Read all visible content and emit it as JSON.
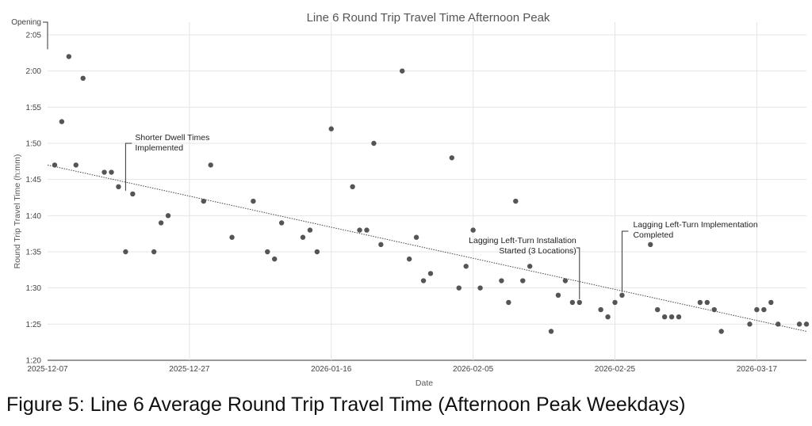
{
  "caption": "Figure 5: Line 6 Average Round Trip Travel Time (Afternoon Peak Weekdays)",
  "chart_data": {
    "type": "scatter",
    "title": "Line 6 Round Trip Travel Time Afternoon Peak",
    "xlabel": "Date",
    "ylabel": "Round Trip Travel Time (h:mm)",
    "x_ticks": [
      "2025-12-07",
      "2025-12-27",
      "2026-01-16",
      "2026-02-05",
      "2026-02-25",
      "2026-03-17"
    ],
    "y_ticks": [
      "1:20",
      "1:25",
      "1:30",
      "1:35",
      "1:40",
      "1:45",
      "1:50",
      "1:55",
      "2:00",
      "2:05"
    ],
    "xlim": [
      "2025-12-07",
      "2026-03-24"
    ],
    "ylim": [
      "1:20",
      "2:08"
    ],
    "grid": true,
    "opening_label": "Opening",
    "trendline": {
      "style": "dotted",
      "from": {
        "x": "2025-12-07",
        "y": "1:47"
      },
      "to": {
        "x": "2026-03-24",
        "y": "1:24"
      }
    },
    "annotations": [
      {
        "lines": [
          "Shorter Dwell Times",
          "Implemented"
        ],
        "x": "2025-12-18",
        "y": "1:43"
      },
      {
        "lines": [
          "Lagging Left-Turn Installation",
          "Started (3 Locations)"
        ],
        "x": "2026-02-20",
        "y": "1:28"
      },
      {
        "lines": [
          "Lagging Left-Turn Implementation",
          "Completed"
        ],
        "x": "2026-02-26",
        "y": "1:29"
      }
    ],
    "series": [
      {
        "points": [
          {
            "x": "2025-12-08",
            "y": "1:47"
          },
          {
            "x": "2025-12-09",
            "y": "1:53"
          },
          {
            "x": "2025-12-10",
            "y": "2:02"
          },
          {
            "x": "2025-12-11",
            "y": "1:47"
          },
          {
            "x": "2025-12-12",
            "y": "1:59"
          },
          {
            "x": "2025-12-15",
            "y": "1:46"
          },
          {
            "x": "2025-12-16",
            "y": "1:46"
          },
          {
            "x": "2025-12-17",
            "y": "1:44"
          },
          {
            "x": "2025-12-18",
            "y": "1:35"
          },
          {
            "x": "2025-12-19",
            "y": "1:43"
          },
          {
            "x": "2025-12-22",
            "y": "1:35"
          },
          {
            "x": "2025-12-23",
            "y": "1:39"
          },
          {
            "x": "2025-12-24",
            "y": "1:40"
          },
          {
            "x": "2025-12-29",
            "y": "1:42"
          },
          {
            "x": "2025-12-30",
            "y": "1:47"
          },
          {
            "x": "2026-01-02",
            "y": "1:37"
          },
          {
            "x": "2026-01-05",
            "y": "1:42"
          },
          {
            "x": "2026-01-07",
            "y": "1:35"
          },
          {
            "x": "2026-01-08",
            "y": "1:34"
          },
          {
            "x": "2026-01-09",
            "y": "1:39"
          },
          {
            "x": "2026-01-12",
            "y": "1:37"
          },
          {
            "x": "2026-01-13",
            "y": "1:38"
          },
          {
            "x": "2026-01-14",
            "y": "1:35"
          },
          {
            "x": "2026-01-16",
            "y": "1:52"
          },
          {
            "x": "2026-01-19",
            "y": "1:44"
          },
          {
            "x": "2026-01-20",
            "y": "1:38"
          },
          {
            "x": "2026-01-21",
            "y": "1:38"
          },
          {
            "x": "2026-01-22",
            "y": "1:50"
          },
          {
            "x": "2026-01-23",
            "y": "1:36"
          },
          {
            "x": "2026-01-26",
            "y": "2:00"
          },
          {
            "x": "2026-01-27",
            "y": "1:34"
          },
          {
            "x": "2026-01-28",
            "y": "1:37"
          },
          {
            "x": "2026-01-29",
            "y": "1:31"
          },
          {
            "x": "2026-01-30",
            "y": "1:32"
          },
          {
            "x": "2026-02-02",
            "y": "1:48"
          },
          {
            "x": "2026-02-03",
            "y": "1:30"
          },
          {
            "x": "2026-02-04",
            "y": "1:33"
          },
          {
            "x": "2026-02-05",
            "y": "1:38"
          },
          {
            "x": "2026-02-06",
            "y": "1:30"
          },
          {
            "x": "2026-02-09",
            "y": "1:31"
          },
          {
            "x": "2026-02-10",
            "y": "1:28"
          },
          {
            "x": "2026-02-11",
            "y": "1:42"
          },
          {
            "x": "2026-02-12",
            "y": "1:31"
          },
          {
            "x": "2026-02-13",
            "y": "1:33"
          },
          {
            "x": "2026-02-16",
            "y": "1:24"
          },
          {
            "x": "2026-02-17",
            "y": "1:29"
          },
          {
            "x": "2026-02-18",
            "y": "1:31"
          },
          {
            "x": "2026-02-19",
            "y": "1:28"
          },
          {
            "x": "2026-02-20",
            "y": "1:28"
          },
          {
            "x": "2026-02-23",
            "y": "1:27"
          },
          {
            "x": "2026-02-24",
            "y": "1:26"
          },
          {
            "x": "2026-02-25",
            "y": "1:28"
          },
          {
            "x": "2026-02-26",
            "y": "1:29"
          },
          {
            "x": "2026-03-02",
            "y": "1:36"
          },
          {
            "x": "2026-03-03",
            "y": "1:27"
          },
          {
            "x": "2026-03-04",
            "y": "1:26"
          },
          {
            "x": "2026-03-05",
            "y": "1:26"
          },
          {
            "x": "2026-03-06",
            "y": "1:26"
          },
          {
            "x": "2026-03-09",
            "y": "1:28"
          },
          {
            "x": "2026-03-10",
            "y": "1:28"
          },
          {
            "x": "2026-03-11",
            "y": "1:27"
          },
          {
            "x": "2026-03-12",
            "y": "1:24"
          },
          {
            "x": "2026-03-16",
            "y": "1:25"
          },
          {
            "x": "2026-03-17",
            "y": "1:27"
          },
          {
            "x": "2026-03-18",
            "y": "1:27"
          },
          {
            "x": "2026-03-19",
            "y": "1:28"
          },
          {
            "x": "2026-03-20",
            "y": "1:25"
          },
          {
            "x": "2026-03-23",
            "y": "1:25"
          },
          {
            "x": "2026-03-24",
            "y": "1:25"
          }
        ]
      }
    ]
  }
}
